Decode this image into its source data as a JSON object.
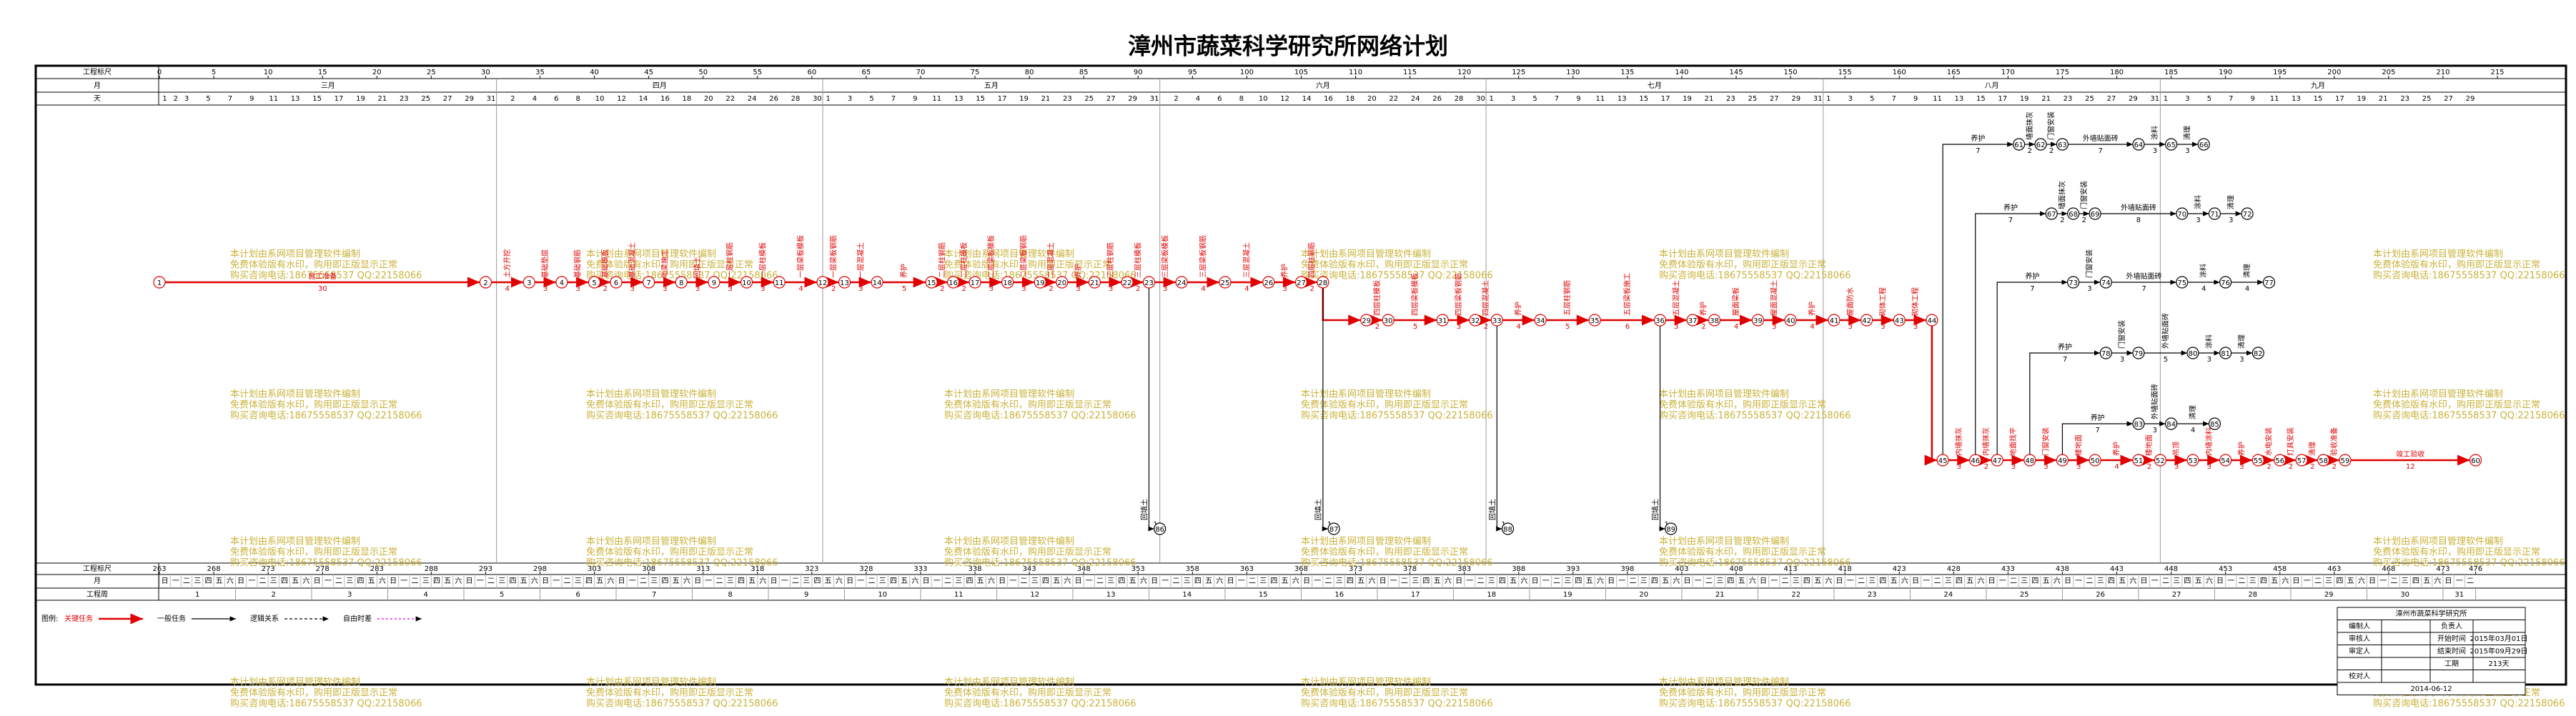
{
  "header": {
    "title": "漳州市蔬菜科学研究所网络计划",
    "labels": [
      "工程标尺",
      "月",
      "天"
    ],
    "ruler": [
      0,
      5,
      10,
      15,
      20,
      25,
      30,
      35,
      40,
      45,
      50,
      55,
      60,
      65,
      70,
      75,
      80,
      85,
      90,
      95,
      100,
      105,
      110,
      115,
      120,
      125,
      130,
      135,
      140,
      145,
      150,
      155,
      160,
      165,
      170,
      175,
      180,
      185,
      190,
      195,
      200,
      205,
      210,
      215
    ],
    "months": [
      {
        "name": "三月",
        "days": [
          1,
          2,
          3,
          5,
          7,
          9,
          11,
          13,
          15,
          17,
          19,
          21,
          23,
          25,
          27,
          29,
          31
        ]
      },
      {
        "name": "四月",
        "days": [
          2,
          4,
          6,
          8,
          10,
          12,
          14,
          16,
          18,
          20,
          22,
          24,
          26,
          28,
          30
        ]
      },
      {
        "name": "五月",
        "days": [
          1,
          3,
          5,
          7,
          9,
          11,
          13,
          15,
          17,
          19,
          21,
          23,
          25,
          27,
          29,
          31
        ]
      },
      {
        "name": "六月",
        "days": [
          2,
          4,
          6,
          8,
          10,
          12,
          14,
          16,
          18,
          20,
          22,
          24,
          26,
          28,
          30
        ]
      },
      {
        "name": "七月",
        "days": [
          1,
          3,
          5,
          7,
          9,
          11,
          13,
          15,
          17,
          19,
          21,
          23,
          25,
          27,
          29,
          31
        ]
      },
      {
        "name": "八月",
        "days": [
          1,
          3,
          5,
          7,
          9,
          11,
          13,
          15,
          17,
          19,
          21,
          23,
          25,
          27,
          29,
          31
        ]
      },
      {
        "name": "九月",
        "days": [
          1,
          3,
          5,
          7,
          9,
          11,
          13,
          15,
          17,
          19,
          21,
          23,
          25,
          27,
          29
        ]
      }
    ]
  },
  "footer": {
    "labels": [
      "工程标尺",
      "月",
      "工程周"
    ],
    "ruler": [
      263,
      268,
      273,
      278,
      283,
      288,
      293,
      298,
      303,
      308,
      313,
      318,
      323,
      328,
      333,
      338,
      343,
      348,
      353,
      358,
      363,
      368,
      373,
      378,
      383,
      388,
      393,
      398,
      403,
      408,
      413,
      418,
      423,
      428,
      433,
      438,
      443,
      448,
      453,
      458,
      463,
      468,
      473,
      476
    ],
    "weekdays": [
      "日",
      "一",
      "二",
      "三",
      "四",
      "五",
      "六"
    ],
    "weeks": [
      1,
      2,
      3,
      4,
      5,
      6,
      7,
      8,
      9,
      10,
      11,
      12,
      13,
      14,
      15,
      16,
      17,
      18,
      19,
      20,
      21,
      22,
      23,
      24,
      25,
      26,
      27,
      28,
      29,
      30,
      31
    ]
  },
  "network": {
    "chains": [
      {
        "critical": true,
        "nodes": [
          {
            "id": 1,
            "day": 0
          },
          {
            "id": 2,
            "day": 30
          },
          {
            "id": 3,
            "day": 34
          },
          {
            "id": 4,
            "day": 37
          },
          {
            "id": 5,
            "day": 40
          },
          {
            "id": 6,
            "day": 42
          },
          {
            "id": 7,
            "day": 45
          },
          {
            "id": 8,
            "day": 48
          },
          {
            "id": 9,
            "day": 51
          },
          {
            "id": 10,
            "day": 54
          },
          {
            "id": 11,
            "day": 57
          },
          {
            "id": 12,
            "day": 61
          },
          {
            "id": 13,
            "day": 63
          },
          {
            "id": 14,
            "day": 66
          },
          {
            "id": 15,
            "day": 71
          },
          {
            "id": 16,
            "day": 73
          },
          {
            "id": 17,
            "day": 75
          },
          {
            "id": 18,
            "day": 78
          },
          {
            "id": 19,
            "day": 81
          },
          {
            "id": 20,
            "day": 83
          },
          {
            "id": 21,
            "day": 86
          },
          {
            "id": 22,
            "day": 89
          },
          {
            "id": 23,
            "day": 91
          },
          {
            "id": 24,
            "day": 94
          },
          {
            "id": 25,
            "day": 98
          },
          {
            "id": 26,
            "day": 102
          },
          {
            "id": 27,
            "day": 105
          },
          {
            "id": 28,
            "day": 107
          }
        ],
        "tasks": [
          {
            "name": "施工准备",
            "days": 30
          },
          {
            "name": "土方开挖",
            "days": 4
          },
          {
            "name": "基础垫层",
            "days": 3
          },
          {
            "name": "基础钢筋",
            "days": 3
          },
          {
            "name": "基础模板",
            "days": 2
          },
          {
            "name": "基础混凝土",
            "days": 3
          },
          {
            "name": "地梁施工",
            "days": 3
          },
          {
            "name": "回填土",
            "days": 3
          },
          {
            "name": "一层柱钢筋",
            "days": 3
          },
          {
            "name": "一层柱模板",
            "days": 3
          },
          {
            "name": "一层梁板模板",
            "days": 4
          },
          {
            "name": "一层梁板钢筋",
            "days": 2
          },
          {
            "name": "一层混凝土",
            "days": 3
          },
          {
            "name": "养护",
            "days": 5
          },
          {
            "name": "二层柱钢筋",
            "days": 2
          },
          {
            "name": "二层柱模板",
            "days": 2
          },
          {
            "name": "二层梁板模板",
            "days": 3
          },
          {
            "name": "二层梁板钢筋",
            "days": 3
          },
          {
            "name": "二层混凝土",
            "days": 2
          },
          {
            "name": "养护",
            "days": 3
          },
          {
            "name": "三层柱钢筋",
            "days": 3
          },
          {
            "name": "三层柱模板",
            "days": 2
          },
          {
            "name": "三层梁板模板",
            "days": 3
          },
          {
            "name": "三层梁板钢筋",
            "days": 4
          },
          {
            "name": "三层混凝土",
            "days": 4
          },
          {
            "name": "养护",
            "days": 3
          },
          {
            "name": "四层柱钢筋",
            "days": 2
          }
        ]
      },
      {
        "critical": true,
        "nodes": [
          {
            "id": 29,
            "day": 111
          },
          {
            "id": 30,
            "day": 113
          },
          {
            "id": 31,
            "day": 118
          },
          {
            "id": 32,
            "day": 121
          },
          {
            "id": 33,
            "day": 123
          },
          {
            "id": 34,
            "day": 127
          },
          {
            "id": 35,
            "day": 132
          },
          {
            "id": 36,
            "day": 138
          },
          {
            "id": 37,
            "day": 141
          },
          {
            "id": 38,
            "day": 143
          },
          {
            "id": 39,
            "day": 147
          },
          {
            "id": 40,
            "day": 150
          },
          {
            "id": 41,
            "day": 154
          },
          {
            "id": 42,
            "day": 157
          },
          {
            "id": 43,
            "day": 160
          },
          {
            "id": 44,
            "day": 163
          }
        ],
        "tasks": [
          {
            "name": "四层柱模板",
            "days": 2
          },
          {
            "name": "四层梁板模板",
            "days": 5
          },
          {
            "name": "四层梁板钢筋",
            "days": 3
          },
          {
            "name": "四层混凝土",
            "days": 2
          },
          {
            "name": "养护",
            "days": 4
          },
          {
            "name": "五层柱钢筋",
            "days": 5
          },
          {
            "name": "五层梁板施工",
            "days": 6
          },
          {
            "name": "五层混凝土",
            "days": 3
          },
          {
            "name": "养护",
            "days": 2
          },
          {
            "name": "屋面梁板",
            "days": 4
          },
          {
            "name": "屋面混凝土",
            "days": 3
          },
          {
            "name": "养护",
            "days": 4
          },
          {
            "name": "屋面防水",
            "days": 3
          },
          {
            "name": "砌体工程",
            "days": 3
          },
          {
            "name": "砌体工程",
            "days": 3
          }
        ]
      },
      {
        "critical": true,
        "nodes": [
          {
            "id": 45,
            "day": 164
          },
          {
            "id": 46,
            "day": 167
          },
          {
            "id": 47,
            "day": 169
          },
          {
            "id": 48,
            "day": 172
          },
          {
            "id": 49,
            "day": 175
          },
          {
            "id": 50,
            "day": 178
          },
          {
            "id": 51,
            "day": 182
          },
          {
            "id": 52,
            "day": 184
          },
          {
            "id": 53,
            "day": 187
          },
          {
            "id": 54,
            "day": 190
          },
          {
            "id": 55,
            "day": 193
          },
          {
            "id": 56,
            "day": 195
          },
          {
            "id": 57,
            "day": 197
          },
          {
            "id": 58,
            "day": 199
          },
          {
            "id": 59,
            "day": 201
          },
          {
            "id": 60,
            "day": 213
          }
        ],
        "tasks": [
          {
            "name": "内墙抹灰",
            "days": 3
          },
          {
            "name": "内墙抹灰",
            "days": 2
          },
          {
            "name": "地面找平",
            "days": 3
          },
          {
            "name": "门窗安装",
            "days": 3
          },
          {
            "name": "楼地面",
            "days": 3
          },
          {
            "name": "养护",
            "days": 4
          },
          {
            "name": "楼地面",
            "days": 2
          },
          {
            "name": "吊顶",
            "days": 3
          },
          {
            "name": "内墙涂料",
            "days": 3
          },
          {
            "name": "养护",
            "days": 3
          },
          {
            "name": "水电安装",
            "days": 2
          },
          {
            "name": "灯具安装",
            "days": 2
          },
          {
            "name": "清理",
            "days": 2
          },
          {
            "name": "验收准备",
            "days": 2
          },
          {
            "name": "竣工验收",
            "days": 12
          }
        ]
      },
      {
        "critical": false,
        "nodes": [
          {
            "id": 61,
            "day": 171
          },
          {
            "id": 62,
            "day": 173
          },
          {
            "id": 63,
            "day": 175
          },
          {
            "id": 64,
            "day": 182
          },
          {
            "id": 65,
            "day": 185
          },
          {
            "id": 66,
            "day": 188
          }
        ],
        "tasks": [
          {
            "name": "墙面抹灰",
            "days": 2
          },
          {
            "name": "门窗安装",
            "days": 2
          },
          {
            "name": "外墙贴面砖",
            "days": 7
          },
          {
            "name": "涂料",
            "days": 3
          },
          {
            "name": "清理",
            "days": 3
          }
        ]
      },
      {
        "critical": false,
        "nodes": [
          {
            "id": 67,
            "day": 174
          },
          {
            "id": 68,
            "day": 176
          },
          {
            "id": 69,
            "day": 178
          },
          {
            "id": 70,
            "day": 186
          },
          {
            "id": 71,
            "day": 189
          },
          {
            "id": 72,
            "day": 192
          }
        ],
        "tasks": [
          {
            "name": "墙面抹灰",
            "days": 2
          },
          {
            "name": "门窗安装",
            "days": 2
          },
          {
            "name": "外墙贴面砖",
            "days": 8
          },
          {
            "name": "涂料",
            "days": 3
          },
          {
            "name": "清理",
            "days": 3
          }
        ]
      },
      {
        "critical": false,
        "nodes": [
          {
            "id": 73,
            "day": 176
          },
          {
            "id": 74,
            "day": 179
          },
          {
            "id": 75,
            "day": 186
          },
          {
            "id": 76,
            "day": 190
          },
          {
            "id": 77,
            "day": 194
          }
        ],
        "tasks": [
          {
            "name": "门窗安装",
            "days": 3
          },
          {
            "name": "外墙贴面砖",
            "days": 7
          },
          {
            "name": "涂料",
            "days": 4
          },
          {
            "name": "清理",
            "days": 4
          }
        ]
      },
      {
        "critical": false,
        "nodes": [
          {
            "id": 78,
            "day": 179
          },
          {
            "id": 79,
            "day": 182
          },
          {
            "id": 80,
            "day": 187
          },
          {
            "id": 81,
            "day": 190
          },
          {
            "id": 82,
            "day": 193
          }
        ],
        "tasks": [
          {
            "name": "门窗安装",
            "days": 3
          },
          {
            "name": "外墙贴面砖",
            "days": 5
          },
          {
            "name": "涂料",
            "days": 3
          },
          {
            "name": "清理",
            "days": 3
          }
        ]
      },
      {
        "critical": false,
        "nodes": [
          {
            "id": 83,
            "day": 182
          },
          {
            "id": 84,
            "day": 185
          },
          {
            "id": 85,
            "day": 189
          }
        ],
        "tasks": [
          {
            "name": "外墙贴面砖",
            "days": 3
          },
          {
            "name": "清理",
            "days": 4
          }
        ]
      },
      {
        "critical": false,
        "nodes": [
          {
            "id": 86,
            "day": 92
          },
          {
            "id": 87,
            "day": 108
          },
          {
            "id": 88,
            "day": 124
          },
          {
            "id": 89,
            "day": 139
          }
        ],
        "tasks": []
      }
    ],
    "links": [
      {
        "from": 28,
        "to": 29,
        "critical": true
      },
      {
        "from": 44,
        "to": 45,
        "critical": true
      },
      {
        "from": 45,
        "to": 61,
        "critical": false,
        "name": "养护",
        "days": 7
      },
      {
        "from": 46,
        "to": 67,
        "critical": false,
        "name": "养护",
        "days": 7
      },
      {
        "from": 47,
        "to": 73,
        "critical": false,
        "name": "养护",
        "days": 7
      },
      {
        "from": 48,
        "to": 78,
        "critical": false,
        "name": "养护",
        "days": 7
      },
      {
        "from": 49,
        "to": 83,
        "critical": false,
        "name": "养护",
        "days": 7
      },
      {
        "from": 23,
        "to": 86,
        "critical": false,
        "name": "回填土",
        "days": 1
      },
      {
        "from": 28,
        "to": 87,
        "critical": false,
        "name": "回填土",
        "days": 1
      },
      {
        "from": 33,
        "to": 88,
        "critical": false,
        "name": "回填土",
        "days": 1
      },
      {
        "from": 36,
        "to": 89,
        "critical": false,
        "name": "回填土",
        "days": 1
      }
    ]
  },
  "watermark": [
    "本计划由系网项目管理软件编制",
    "免费体验版有水印，购用即正版显示正常",
    "购买咨询电话:18675558537 QQ:22158066"
  ],
  "legend": {
    "title": "图例:",
    "items": [
      "关键任务",
      "一般任务",
      "逻辑关系",
      "自由时差"
    ]
  },
  "info": {
    "org": "漳州市蔬菜科学研究所",
    "rows": [
      {
        "left": "编制人",
        "right": "负责人"
      },
      {
        "left": "审核人",
        "right": "开始时间",
        "value": "2015年03月01日"
      },
      {
        "left": "审定人",
        "right": "结束时间",
        "value": "2015年09月29日"
      },
      {
        "right": "工期",
        "value": "213天"
      },
      {
        "left": "校对人"
      }
    ],
    "date": "2014-06-12"
  }
}
